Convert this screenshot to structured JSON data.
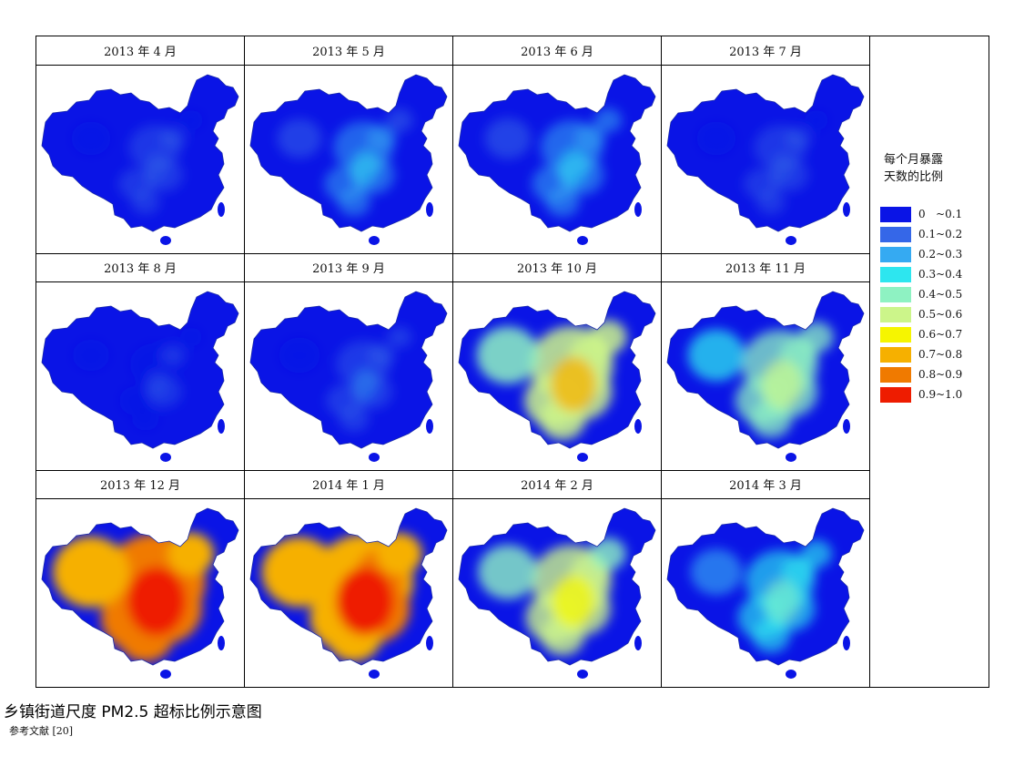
{
  "maps": [
    {
      "title": "2013 年 4 月",
      "level": 0.12
    },
    {
      "title": "2013 年 5 月",
      "level": 0.22
    },
    {
      "title": "2013 年 6 月",
      "level": 0.25
    },
    {
      "title": "2013 年 7 月",
      "level": 0.12
    },
    {
      "title": "2013 年 8 月",
      "level": 0.08
    },
    {
      "title": "2013 年 9 月",
      "level": 0.15
    },
    {
      "title": "2013 年 10 月",
      "level": 0.55
    },
    {
      "title": "2013 年 11 月",
      "level": 0.45
    },
    {
      "title": "2013 年 12 月",
      "level": 0.8
    },
    {
      "title": "2014 年 1 月",
      "level": 0.78
    },
    {
      "title": "2014 年 2 月",
      "level": 0.5
    },
    {
      "title": "2014 年 3 月",
      "level": 0.35
    }
  ],
  "legend": {
    "title_line1": "每个月暴露",
    "title_line2": "天数的比例",
    "items": [
      {
        "label": "0   ~0.1",
        "color": "#0a14e6"
      },
      {
        "label": "0.1~0.2",
        "color": "#3567e8"
      },
      {
        "label": "0.2~0.3",
        "color": "#35aaf2"
      },
      {
        "label": "0.3~0.4",
        "color": "#2de6ef"
      },
      {
        "label": "0.4~0.5",
        "color": "#8ef2c2"
      },
      {
        "label": "0.5~0.6",
        "color": "#ccf58a"
      },
      {
        "label": "0.6~0.7",
        "color": "#f6f500"
      },
      {
        "label": "0.7~0.8",
        "color": "#f6b000"
      },
      {
        "label": "0.8~0.9",
        "color": "#f07a00"
      },
      {
        "label": "0.9~1.0",
        "color": "#ee1c00"
      }
    ]
  },
  "caption": "乡镇街道尺度 PM2.5 超标比例示意图",
  "source": "参考文献 [20]"
}
